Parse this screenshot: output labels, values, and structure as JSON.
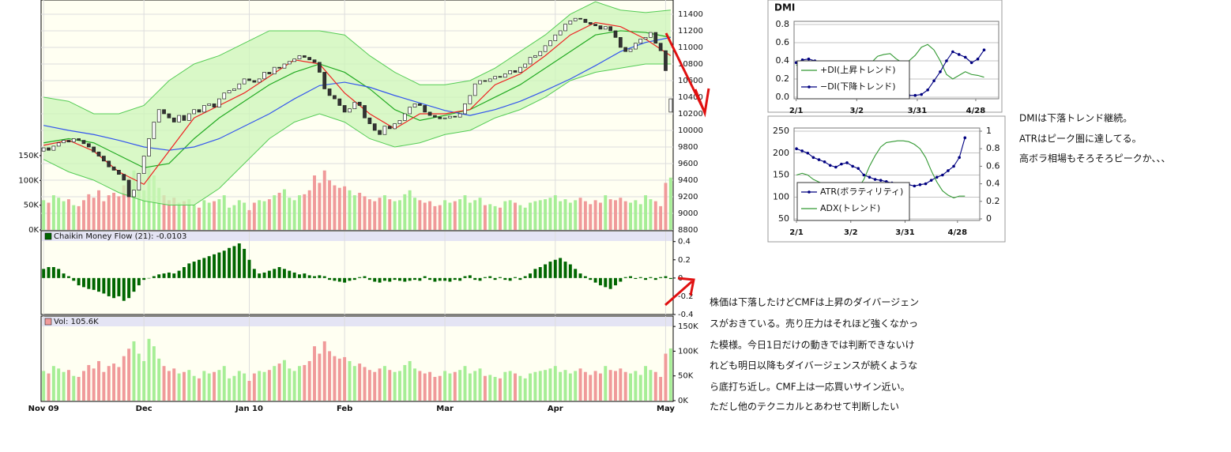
{
  "chart_data": [
    {
      "type": "candlestick",
      "xlim": [
        -0.5,
        125.5
      ],
      "xticks": [
        {
          "value": 0,
          "label": "Nov 09"
        },
        {
          "value": 20,
          "label": "Dec"
        },
        {
          "value": 41,
          "label": "Jan 10"
        },
        {
          "value": 60,
          "label": "Feb"
        },
        {
          "value": 80,
          "label": "Mar"
        },
        {
          "value": 102,
          "label": "Apr"
        },
        {
          "value": 124,
          "label": "May"
        }
      ],
      "ylim": [
        8800,
        11571
      ],
      "yticks": [
        8800,
        9000,
        9200,
        9400,
        9600,
        9800,
        10000,
        10200,
        10400,
        10600,
        10800,
        11000,
        11200,
        11400
      ],
      "grid": true,
      "open": [
        9750,
        9790,
        9760,
        9810,
        9850,
        9880,
        9860,
        9900,
        9880,
        9840,
        9800,
        9740,
        9690,
        9630,
        9560,
        9520,
        9470,
        9400,
        9200,
        9280,
        9480,
        9690,
        9900,
        10100,
        10250,
        10200,
        10150,
        10100,
        10180,
        10120,
        10200,
        10250,
        10220,
        10300,
        10320,
        10280,
        10380,
        10450,
        10480,
        10500,
        10560,
        10620,
        10600,
        10580,
        10620,
        10700,
        10680,
        10760,
        10750,
        10800,
        10830,
        10860,
        10900,
        10880,
        10850,
        10820,
        10700,
        10500,
        10420,
        10380,
        10300,
        10220,
        10260,
        10340,
        10300,
        10150,
        10080,
        10000,
        9950,
        10050,
        10020,
        10080,
        10120,
        10200,
        10280,
        10320,
        10300,
        10220,
        10180,
        10160,
        10140,
        10150,
        10170,
        10160,
        10200,
        10320,
        10420,
        10560,
        10600,
        10590,
        10620,
        10650,
        10640,
        10680,
        10720,
        10700,
        10760,
        10800,
        10880,
        10900,
        10950,
        11020,
        11080,
        11150,
        11200,
        11280,
        11320,
        11350,
        11340,
        11300,
        11280,
        11260,
        11220,
        11250,
        11200,
        11120,
        11000,
        10950,
        10980,
        11050,
        11100,
        11120,
        11180,
        11050,
        10960,
        10220
      ],
      "close": [
        9790,
        9760,
        9810,
        9850,
        9880,
        9860,
        9900,
        9880,
        9840,
        9800,
        9740,
        9690,
        9630,
        9560,
        9520,
        9470,
        9400,
        9200,
        9280,
        9480,
        9690,
        9900,
        10100,
        10250,
        10200,
        10150,
        10100,
        10180,
        10120,
        10200,
        10250,
        10220,
        10300,
        10320,
        10280,
        10380,
        10450,
        10480,
        10500,
        10560,
        10620,
        10600,
        10580,
        10620,
        10700,
        10680,
        10760,
        10750,
        10800,
        10830,
        10860,
        10900,
        10880,
        10850,
        10820,
        10700,
        10500,
        10420,
        10380,
        10300,
        10220,
        10260,
        10340,
        10300,
        10150,
        10080,
        10000,
        9950,
        10050,
        10020,
        10080,
        10120,
        10200,
        10280,
        10320,
        10300,
        10220,
        10180,
        10160,
        10140,
        10150,
        10170,
        10160,
        10200,
        10320,
        10420,
        10560,
        10600,
        10590,
        10620,
        10650,
        10640,
        10680,
        10720,
        10700,
        10760,
        10800,
        10880,
        10900,
        10950,
        11020,
        11080,
        11150,
        11200,
        11280,
        11320,
        11350,
        11340,
        11300,
        11280,
        11260,
        11220,
        11250,
        11200,
        11120,
        11000,
        10950,
        10980,
        11050,
        11100,
        11120,
        11180,
        11050,
        10960,
        10720,
        10380
      ],
      "overlays": {
        "x": [
          0,
          5,
          10,
          15,
          20,
          25,
          30,
          35,
          40,
          45,
          50,
          55,
          60,
          65,
          70,
          75,
          80,
          85,
          90,
          95,
          100,
          105,
          110,
          115,
          120,
          125
        ],
        "band": {
          "color": "#ccf5b8",
          "line_color": "#55cc55",
          "upper": [
            10400,
            10350,
            10200,
            10200,
            10300,
            10600,
            10800,
            10900,
            11050,
            11200,
            11200,
            11200,
            11150,
            10900,
            10700,
            10550,
            10550,
            10600,
            10750,
            10950,
            11150,
            11400,
            11550,
            11450,
            11420,
            11450
          ],
          "lower": [
            9650,
            9500,
            9400,
            9250,
            9150,
            9100,
            9100,
            9300,
            9600,
            9900,
            10100,
            10200,
            10100,
            9900,
            9800,
            9850,
            9950,
            10000,
            10150,
            10250,
            10400,
            10600,
            10700,
            10750,
            10800,
            10800
          ]
        },
        "lines": [
          {
            "color": "#22aa22",
            "values": [
              9850,
              9900,
              9850,
              9700,
              9550,
              9600,
              9900,
              10150,
              10350,
              10550,
              10700,
              10800,
              10700,
              10500,
              10250,
              10120,
              10180,
              10250,
              10400,
              10550,
              10750,
              10950,
              11150,
              11200,
              11180,
              11120
            ]
          },
          {
            "color": "#3355ee",
            "values": [
              10060,
              10000,
              9950,
              9880,
              9800,
              9760,
              9800,
              9900,
              10050,
              10200,
              10380,
              10540,
              10580,
              10520,
              10420,
              10330,
              10240,
              10180,
              10250,
              10350,
              10480,
              10620,
              10780,
              10950,
              11060,
              11120
            ]
          },
          {
            "color": "#ee2222",
            "values": [
              9820,
              9880,
              9750,
              9500,
              9350,
              9750,
              10150,
              10300,
              10450,
              10650,
              10850,
              10800,
              10450,
              10200,
              10020,
              10200,
              10200,
              10250,
              10550,
              10680,
              10900,
              11150,
              11300,
              11250,
              11100,
              10900
            ]
          }
        ]
      },
      "overlay_ylim": [
        0,
        464
      ],
      "overlay_yticks": [
        {
          "value": 0,
          "label": "0K"
        },
        {
          "value": 50,
          "label": "50K"
        },
        {
          "value": 100,
          "label": "100K"
        },
        {
          "value": 150,
          "label": "150K"
        }
      ]
    },
    {
      "type": "bar",
      "title": "Chaikin Money Flow (21): -0.0103",
      "color": "#006600",
      "ylim": [
        -0.4,
        0.51
      ],
      "yticks": [
        -0.4,
        -0.2,
        0,
        0.2,
        0.4
      ],
      "values": [
        0.1,
        0.12,
        0.12,
        0.1,
        0.05,
        0.02,
        -0.03,
        -0.08,
        -0.1,
        -0.12,
        -0.13,
        -0.15,
        -0.17,
        -0.2,
        -0.22,
        -0.2,
        -0.25,
        -0.22,
        -0.15,
        -0.08,
        -0.02,
        0,
        0.02,
        0.04,
        0.05,
        0.06,
        0.05,
        0.08,
        0.12,
        0.16,
        0.18,
        0.2,
        0.22,
        0.24,
        0.26,
        0.28,
        0.3,
        0.33,
        0.35,
        0.38,
        0.32,
        0.2,
        0.1,
        0.05,
        0.06,
        0.08,
        0.1,
        0.12,
        0.1,
        0.08,
        0.06,
        0.04,
        0.05,
        0.03,
        0.02,
        0.03,
        0.02,
        -0.02,
        -0.03,
        -0.04,
        -0.05,
        -0.03,
        -0.02,
        0.01,
        0.02,
        -0.02,
        -0.04,
        -0.05,
        -0.03,
        -0.04,
        -0.02,
        -0.03,
        -0.04,
        -0.03,
        -0.02,
        -0.03,
        0.02,
        -0.02,
        -0.04,
        -0.03,
        -0.03,
        -0.04,
        -0.02,
        -0.03,
        0.02,
        0.03,
        -0.02,
        -0.03,
        0.01,
        0.02,
        -0.02,
        0.01,
        -0.02,
        -0.03,
        0.01,
        -0.02,
        0.02,
        0.05,
        0.1,
        0.12,
        0.15,
        0.18,
        0.2,
        0.22,
        0.18,
        0.15,
        0.1,
        0.05,
        0.02,
        -0.02,
        -0.05,
        -0.08,
        -0.1,
        -0.12,
        -0.08,
        -0.04,
        0.01,
        0.02,
        -0.01,
        0.01,
        -0.02,
        0.01,
        -0.02,
        0.01,
        0.02,
        -0.0103
      ]
    },
    {
      "type": "bar",
      "title": "Vol: 105.6K",
      "colors": {
        "up": "#a6ee96",
        "down": "#f09a9a"
      },
      "ylim": [
        0,
        171
      ],
      "yticks": [
        {
          "value": 0,
          "label": "0K"
        },
        {
          "value": 50,
          "label": "50K"
        },
        {
          "value": 100,
          "label": "100K"
        },
        {
          "value": 150,
          "label": "150K"
        }
      ],
      "values": [
        60,
        55,
        70,
        65,
        58,
        62,
        50,
        48,
        60,
        72,
        65,
        80,
        58,
        70,
        75,
        68,
        90,
        105,
        120,
        95,
        80,
        125,
        110,
        85,
        70,
        60,
        65,
        55,
        58,
        62,
        50,
        45,
        60,
        55,
        58,
        62,
        70,
        45,
        50,
        60,
        55,
        40,
        55,
        60,
        58,
        62,
        70,
        75,
        82,
        65,
        60,
        70,
        72,
        80,
        110,
        95,
        120,
        100,
        90,
        85,
        88,
        80,
        70,
        75,
        68,
        62,
        58,
        65,
        70,
        62,
        58,
        60,
        72,
        80,
        65,
        60,
        55,
        58,
        48,
        50,
        60,
        55,
        58,
        62,
        70,
        55,
        60,
        65,
        50,
        52,
        48,
        45,
        58,
        60,
        55,
        50,
        45,
        55,
        58,
        60,
        62,
        65,
        70,
        58,
        62,
        55,
        60,
        65,
        58,
        52,
        60,
        55,
        70,
        62,
        60,
        65,
        58,
        55,
        60,
        52,
        70,
        62,
        58,
        48,
        95,
        105.6
      ]
    },
    {
      "type": "line",
      "title": "DMI",
      "legend": "lower left",
      "grid": true,
      "x": [
        0,
        3,
        6,
        9,
        12,
        15,
        18,
        21,
        24,
        27,
        30,
        33,
        36,
        39,
        42,
        45,
        48,
        51,
        54,
        57,
        60,
        63,
        66,
        69,
        72,
        75,
        78,
        81,
        84,
        87,
        90
      ],
      "xlim": [
        -1,
        97
      ],
      "xticks": [
        {
          "value": 0,
          "label": "2/1"
        },
        {
          "value": 29,
          "label": "3/2"
        },
        {
          "value": 58,
          "label": "3/31"
        },
        {
          "value": 86,
          "label": "4/28"
        }
      ],
      "ylim": [
        0,
        0.8
      ],
      "yticks": [
        {
          "value": 0,
          "label": "0.0"
        },
        0.2,
        0.4,
        0.6,
        0.8
      ],
      "series": [
        {
          "name": "+DI(上昇トレンド)",
          "color": "#339933",
          "values": [
            0.35,
            0.38,
            0.36,
            0.34,
            0.3,
            0.28,
            0.3,
            0.32,
            0.3,
            0.32,
            0.28,
            0.3,
            0.38,
            0.45,
            0.47,
            0.48,
            0.42,
            0.38,
            0.4,
            0.46,
            0.55,
            0.58,
            0.52,
            0.4,
            0.25,
            0.2,
            0.24,
            0.28,
            0.25,
            0.24,
            0.22
          ]
        },
        {
          "name": "−DI(下降トレンド)",
          "color": "#000080",
          "marker": true,
          "values": [
            0.38,
            0.41,
            0.42,
            0.4,
            0.38,
            0.35,
            0.33,
            0.3,
            0.28,
            0.25,
            0.22,
            0.2,
            0.16,
            0.12,
            0.08,
            0.05,
            0.03,
            0.02,
            0.02,
            0.02,
            0.03,
            0.08,
            0.18,
            0.28,
            0.4,
            0.5,
            0.47,
            0.44,
            0.38,
            0.42,
            0.52
          ]
        }
      ]
    },
    {
      "type": "line",
      "legend": "lower left",
      "grid": true,
      "x": [
        0,
        3,
        6,
        9,
        12,
        15,
        18,
        21,
        24,
        27,
        30,
        33,
        36,
        39,
        42,
        45,
        48,
        51,
        54,
        57,
        60,
        63,
        66,
        69,
        72,
        75,
        78,
        81,
        84,
        87,
        90
      ],
      "xlim": [
        -1.3,
        97.9
      ],
      "xticks": [
        {
          "value": 0,
          "label": "2/1"
        },
        {
          "value": 29,
          "label": "3/2"
        },
        {
          "value": 58,
          "label": "3/31"
        },
        {
          "value": 86,
          "label": "4/28"
        }
      ],
      "ylim": [
        50,
        250
      ],
      "yticks": [
        50,
        100,
        150,
        200,
        250
      ],
      "y2lim": [
        0,
        1
      ],
      "y2ticks": [
        0,
        0.2,
        0.4,
        0.6,
        0.8,
        1
      ],
      "series": [
        {
          "name": "ATR(ボラティリティ)",
          "color": "#000080",
          "marker": true,
          "values": [
            210,
            205,
            200,
            190,
            185,
            180,
            172,
            168,
            175,
            178,
            170,
            165,
            150,
            145,
            140,
            138,
            135,
            132,
            130,
            128,
            128,
            125,
            128,
            130,
            138,
            145,
            150,
            160,
            170,
            190,
            235
          ]
        },
        {
          "name": "ADX(トレンド)",
          "color": "#339933",
          "axis": "y2",
          "values": [
            0.5,
            0.52,
            0.5,
            0.45,
            0.42,
            0.4,
            0.38,
            0.35,
            0.33,
            0.32,
            0.3,
            0.35,
            0.45,
            0.6,
            0.72,
            0.82,
            0.87,
            0.88,
            0.89,
            0.89,
            0.88,
            0.85,
            0.8,
            0.7,
            0.55,
            0.42,
            0.32,
            0.27,
            0.24,
            0.26,
            0.26
          ]
        }
      ]
    }
  ],
  "side_comments": [
    "DMIは下落トレンド継続。",
    "ATRはピーク圏に達してる。",
    "高ボラ相場もそろそろピークか、、、"
  ],
  "cmf_comments": [
    "株価は下落したけどCMFは上昇のダイバージェン",
    "スがおきている。売り圧力はそれほど強くなかっ",
    "た模様。今日1日だけの動きでは判断できないけ",
    "れども明日以降もダイバージェンスが続くような",
    "ら底打ち近し。CMF上は一応買いサイン近い。",
    "ただし他のテクニカルとあわせて判断したい"
  ]
}
